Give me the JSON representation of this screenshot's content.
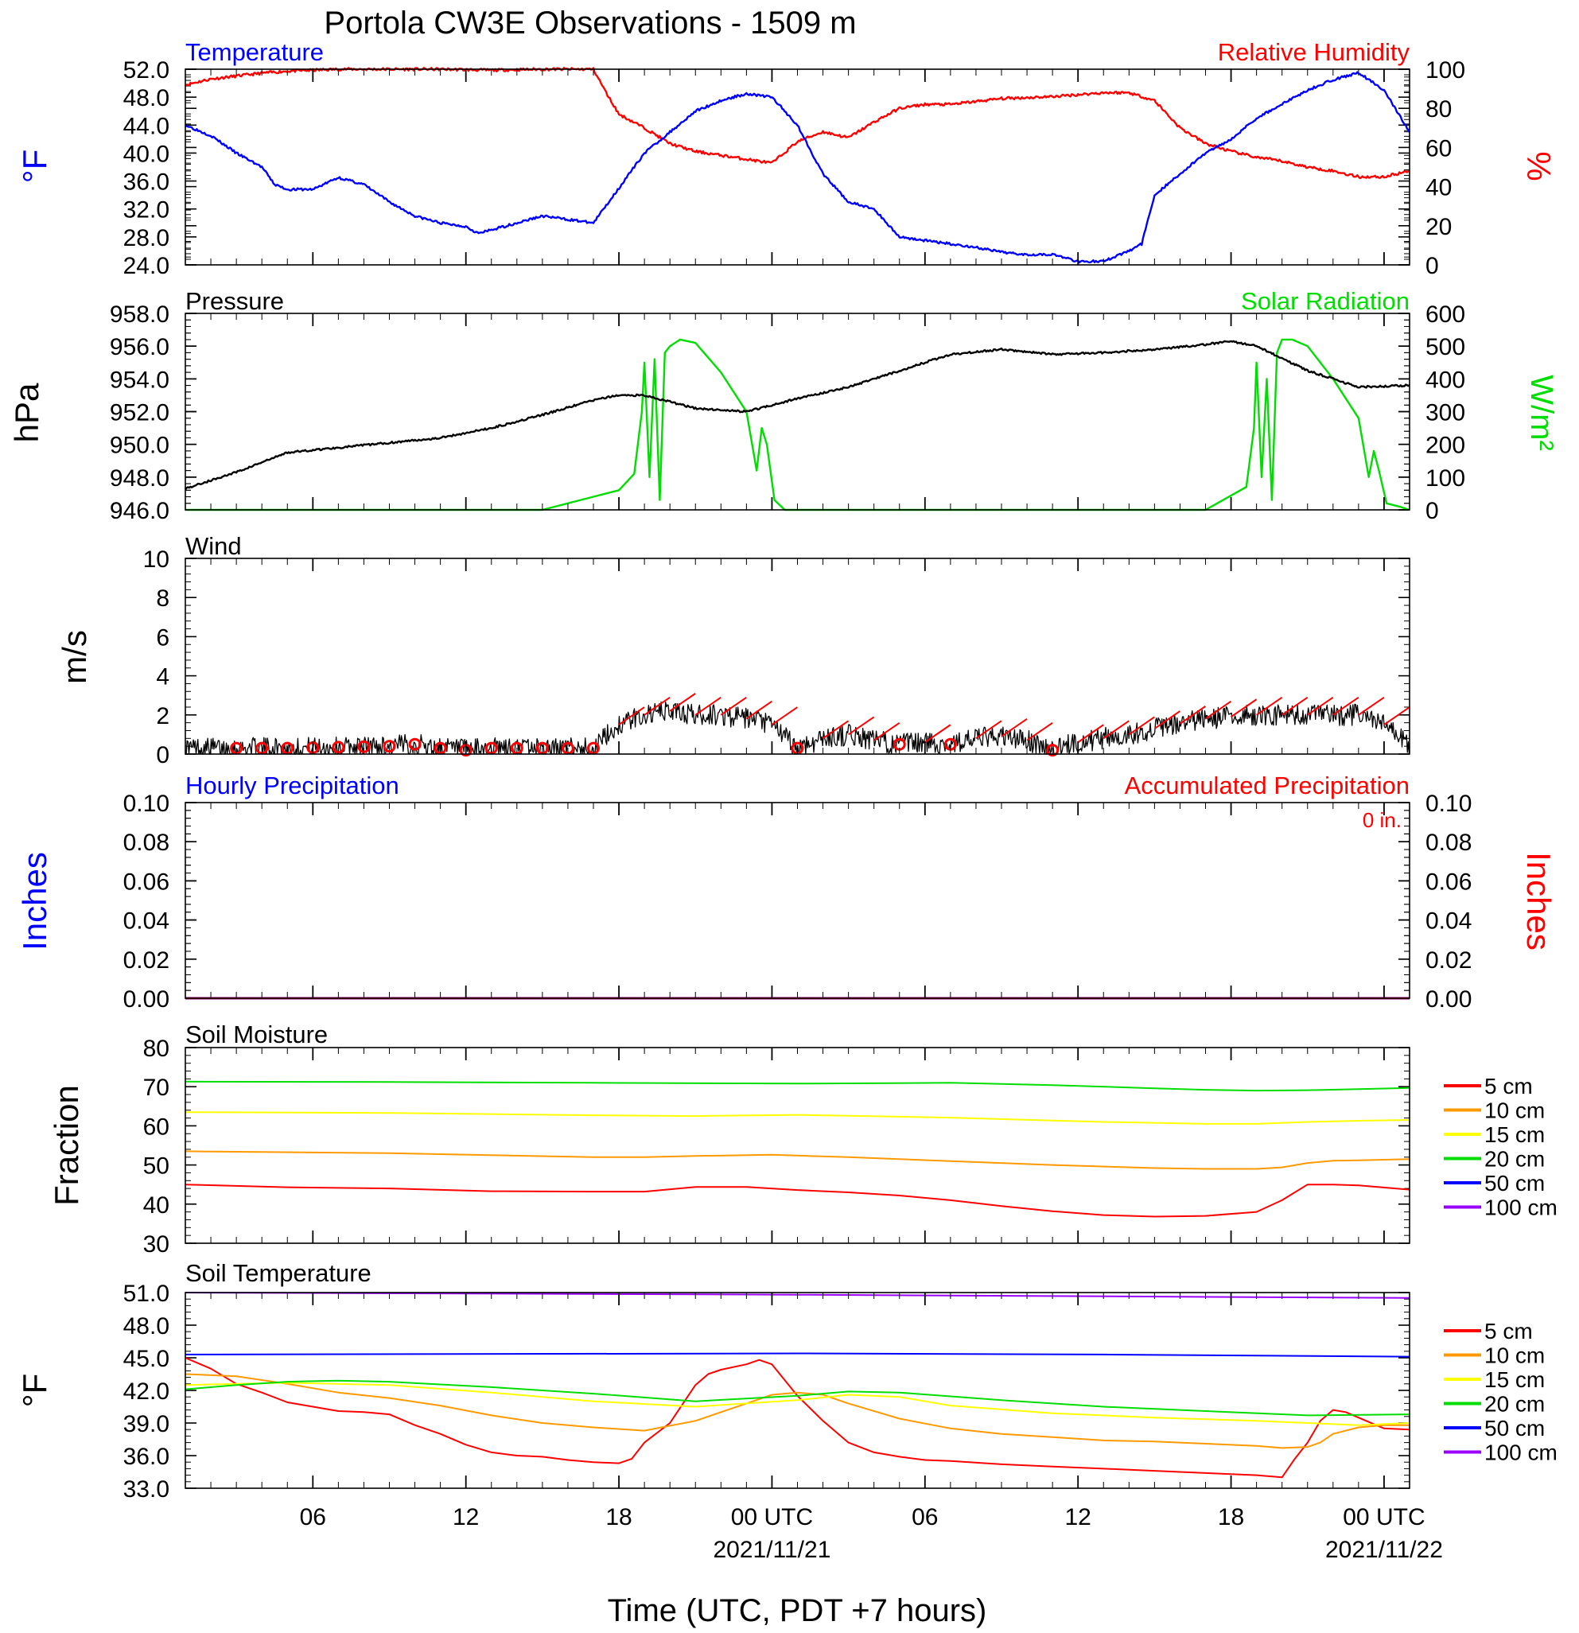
{
  "title": "Portola CW3E Observations - 1509 m",
  "x_axis": {
    "label": "Time (UTC, PDT +7 hours)",
    "range_hours": [
      0,
      48
    ],
    "ticks": [
      {
        "hour": 5,
        "label": "06"
      },
      {
        "hour": 11,
        "label": "12"
      },
      {
        "hour": 17,
        "label": "18"
      },
      {
        "hour": 23,
        "label": "00 UTC",
        "date": "2021/11/21"
      },
      {
        "hour": 29,
        "label": "06"
      },
      {
        "hour": 35,
        "label": "12"
      },
      {
        "hour": 41,
        "label": "18"
      },
      {
        "hour": 47,
        "label": "00 UTC",
        "date": "2021/11/22"
      }
    ]
  },
  "colors": {
    "blue": "#0000ff",
    "red": "#ff0000",
    "green": "#00dd00",
    "black": "#000000",
    "orange": "#ff9900",
    "yellow": "#ffff00",
    "purple": "#9900ff"
  },
  "panels": {
    "temp_rh": {
      "left_title": "Temperature",
      "right_title": "Relative Humidity",
      "left_unit": "°F",
      "right_unit": "%",
      "left_ticks": [
        "52.0",
        "48.0",
        "44.0",
        "40.0",
        "36.0",
        "32.0",
        "28.0",
        "24.0"
      ],
      "right_ticks": [
        "100",
        "80",
        "60",
        "40",
        "20",
        "0"
      ]
    },
    "pressure_solar": {
      "left_title": "Pressure",
      "right_title": "Solar Radiation",
      "left_unit": "hPa",
      "right_unit": "W/m²",
      "left_ticks": [
        "958.0",
        "956.0",
        "954.0",
        "952.0",
        "950.0",
        "948.0",
        "946.0"
      ],
      "right_ticks": [
        "600",
        "500",
        "400",
        "300",
        "200",
        "100",
        "0"
      ]
    },
    "wind": {
      "left_title": "Wind",
      "left_unit": "m/s",
      "left_ticks": [
        "10",
        "8",
        "6",
        "4",
        "2",
        "0"
      ]
    },
    "precip": {
      "left_title": "Hourly Precipitation",
      "right_title": "Accumulated Precipitation",
      "accum_label": "0 in.",
      "left_unit": "Inches",
      "right_unit": "Inches",
      "left_ticks": [
        "0.10",
        "0.08",
        "0.06",
        "0.04",
        "0.02",
        "0.00"
      ],
      "right_ticks": [
        "0.10",
        "0.08",
        "0.06",
        "0.04",
        "0.02",
        "0.00"
      ]
    },
    "soil_moisture": {
      "left_title": "Soil Moisture",
      "left_unit": "Fraction",
      "left_ticks": [
        "80",
        "70",
        "60",
        "50",
        "40",
        "30"
      ],
      "legend": [
        "5 cm",
        "10 cm",
        "15 cm",
        "20 cm",
        "50 cm",
        "100 cm"
      ]
    },
    "soil_temp": {
      "left_title": "Soil Temperature",
      "left_unit": "°F",
      "left_ticks": [
        "51.0",
        "48.0",
        "45.0",
        "42.0",
        "39.0",
        "36.0",
        "33.0"
      ],
      "legend": [
        "5 cm",
        "10 cm",
        "15 cm",
        "20 cm",
        "50 cm",
        "100 cm"
      ]
    }
  },
  "chart_data": [
    {
      "type": "line",
      "title": "Temperature",
      "ylabel": "°F",
      "ylim": [
        24,
        52
      ],
      "series": [
        {
          "name": "Temperature",
          "color": "#0000ff",
          "x": [
            0,
            1,
            2,
            3,
            3.5,
            4,
            5,
            6,
            7,
            8,
            9,
            10,
            11,
            11.5,
            12,
            13,
            14,
            15,
            16,
            17,
            18,
            19,
            20,
            21,
            22,
            23,
            23.5,
            24,
            25,
            26,
            27,
            28,
            29,
            30,
            31,
            32,
            33,
            34,
            35,
            36,
            37,
            37.5,
            38,
            39,
            40,
            41,
            42,
            43,
            44,
            45,
            46,
            47,
            48
          ],
          "y": [
            44,
            42.5,
            40,
            38,
            35.5,
            34.8,
            34.8,
            36.5,
            35.5,
            33,
            31,
            30,
            29.5,
            28.5,
            29,
            30,
            31,
            30.5,
            30,
            35,
            40,
            43,
            46,
            47.5,
            48.5,
            48,
            46,
            44,
            37,
            33,
            32,
            28,
            27.5,
            27,
            26.5,
            25.8,
            25.5,
            25.5,
            24.5,
            24.5,
            26,
            27,
            34,
            37,
            40,
            42,
            45,
            47,
            49,
            50.5,
            51.5,
            49,
            43
          ]
        }
      ]
    },
    {
      "type": "line",
      "title": "Relative Humidity",
      "ylabel": "%",
      "ylim": [
        0,
        100
      ],
      "series": [
        {
          "name": "Relative Humidity",
          "color": "#ff0000",
          "x": [
            0,
            1,
            2,
            3,
            4,
            5,
            6,
            8,
            10,
            12,
            14,
            16,
            16.5,
            17,
            18,
            19,
            20,
            21,
            22,
            23,
            24,
            25,
            26,
            27,
            28,
            29,
            30,
            32,
            34,
            36,
            37,
            38,
            39,
            40,
            41,
            42,
            43,
            44,
            45,
            46,
            47,
            48
          ],
          "y": [
            92,
            95,
            96.5,
            98,
            99,
            99.5,
            100,
            100,
            100,
            99.5,
            100,
            100,
            88,
            77,
            70,
            62,
            58,
            56,
            54,
            52,
            63,
            68,
            65,
            73,
            80,
            82,
            82,
            85,
            86,
            88,
            88,
            84,
            70,
            62,
            58,
            55,
            53,
            50,
            48,
            45,
            45,
            48
          ]
        }
      ]
    },
    {
      "type": "line",
      "title": "Pressure",
      "ylabel": "hPa",
      "ylim": [
        946,
        958
      ],
      "series": [
        {
          "name": "Pressure",
          "color": "#000000",
          "x": [
            0,
            2,
            4,
            6,
            8,
            10,
            12,
            14,
            16,
            17,
            18,
            20,
            22,
            24,
            26,
            28,
            30,
            32,
            34,
            36,
            38,
            40,
            41,
            42,
            44,
            46,
            48
          ],
          "y": [
            947.3,
            948.3,
            949.5,
            949.8,
            950.1,
            950.4,
            951,
            951.8,
            952.7,
            953,
            953,
            952.2,
            952,
            952.8,
            953.5,
            954.5,
            955.5,
            955.8,
            955.5,
            955.6,
            955.8,
            956.1,
            956.3,
            956,
            954.5,
            953.5,
            953.6
          ]
        }
      ]
    },
    {
      "type": "line",
      "title": "Solar Radiation",
      "ylabel": "W/m²",
      "ylim": [
        0,
        600
      ],
      "series": [
        {
          "name": "Solar Radiation",
          "color": "#00dd00",
          "x": [
            0,
            14,
            16,
            17,
            17.6,
            17.9,
            18,
            18.2,
            18.4,
            18.6,
            18.8,
            19,
            19.4,
            20,
            21,
            22,
            22.4,
            22.6,
            22.8,
            23.1,
            23.5,
            24,
            40,
            41.6,
            41.9,
            42,
            42.2,
            42.4,
            42.6,
            42.8,
            43,
            43.4,
            44,
            45,
            46,
            46.4,
            46.6,
            46.8,
            47.1,
            47.6,
            48
          ],
          "y": [
            0,
            0,
            40,
            60,
            110,
            300,
            450,
            100,
            460,
            30,
            480,
            500,
            520,
            510,
            420,
            300,
            120,
            250,
            200,
            30,
            0,
            0,
            0,
            70,
            250,
            450,
            100,
            400,
            30,
            480,
            520,
            520,
            500,
            400,
            280,
            100,
            180,
            120,
            20,
            10,
            0
          ]
        }
      ]
    },
    {
      "type": "line",
      "title": "Wind",
      "ylabel": "m/s",
      "ylim": [
        0,
        10
      ],
      "series": [
        {
          "name": "Wind speed",
          "color": "#000000",
          "x": [
            0,
            4,
            8,
            9,
            10,
            11,
            12,
            14,
            16,
            16.5,
            17,
            18,
            19,
            20,
            21,
            22,
            23,
            24,
            25,
            26,
            27,
            28,
            29,
            30,
            31,
            32,
            33,
            34,
            35,
            36,
            37,
            38,
            40,
            42,
            44,
            46,
            47,
            48
          ],
          "y": [
            0.3,
            0.3,
            0.4,
            0.5,
            0.3,
            0.2,
            0.3,
            0.3,
            0.3,
            0.9,
            1.5,
            2,
            2.2,
            2,
            2,
            1.8,
            1.5,
            0.3,
            0.8,
            1,
            0.7,
            0.5,
            0.6,
            0.5,
            0.8,
            0.9,
            0.7,
            0.2,
            0.6,
            0.8,
            1,
            1.3,
            1.8,
            2,
            2,
            2,
            1.5,
            0.5
          ]
        }
      ]
    },
    {
      "type": "line",
      "title": "Hourly Precipitation",
      "ylabel": "Inches",
      "ylim": [
        0,
        0.1
      ],
      "series": [
        {
          "name": "Hourly Precipitation",
          "color": "#0000ff",
          "x": [
            0,
            48
          ],
          "y": [
            0,
            0
          ]
        },
        {
          "name": "Accumulated Precipitation",
          "color": "#ff0000",
          "x": [
            0,
            48
          ],
          "y": [
            0,
            0
          ]
        }
      ]
    },
    {
      "type": "line",
      "title": "Soil Moisture",
      "ylabel": "Fraction",
      "ylim": [
        30,
        80
      ],
      "series": [
        {
          "name": "5 cm",
          "color": "#ff0000",
          "x": [
            0,
            4,
            8,
            12,
            16,
            18,
            20,
            22,
            24,
            26,
            28,
            30,
            32,
            34,
            36,
            38,
            40,
            42,
            43,
            44,
            45,
            46,
            48
          ],
          "y": [
            45,
            44.3,
            44,
            43.3,
            43.2,
            43.2,
            44.4,
            44.4,
            43.6,
            43,
            42.2,
            41,
            39.5,
            38.2,
            37.2,
            36.8,
            37,
            38,
            41,
            45,
            45,
            44.8,
            43.7
          ]
        },
        {
          "name": "10 cm",
          "color": "#ff9900",
          "x": [
            0,
            8,
            16,
            18,
            20,
            23,
            26,
            30,
            34,
            38,
            40,
            42,
            43,
            44,
            45,
            46,
            48
          ],
          "y": [
            53.5,
            53,
            52,
            52,
            52.3,
            52.6,
            52,
            51,
            50,
            49.2,
            49,
            49,
            49.4,
            50.5,
            51.1,
            51.2,
            51.5
          ]
        },
        {
          "name": "15 cm",
          "color": "#ffff00",
          "x": [
            0,
            8,
            16,
            20,
            24,
            30,
            36,
            40,
            42,
            44,
            46,
            48
          ],
          "y": [
            63.5,
            63.3,
            62.7,
            62.5,
            62.8,
            62.1,
            61,
            60.5,
            60.5,
            61,
            61.3,
            61.5
          ]
        },
        {
          "name": "20 cm",
          "color": "#00dd00",
          "x": [
            0,
            8,
            16,
            24,
            30,
            34,
            38,
            40,
            42,
            44,
            46,
            48
          ],
          "y": [
            71.3,
            71.2,
            71,
            70.8,
            71,
            70.4,
            69.6,
            69.2,
            69,
            69.1,
            69.4,
            69.7
          ]
        }
      ]
    },
    {
      "type": "line",
      "title": "Soil Temperature",
      "ylabel": "°F",
      "ylim": [
        33,
        51
      ],
      "series": [
        {
          "name": "5 cm",
          "color": "#ff0000",
          "x": [
            0,
            1,
            2,
            3,
            4,
            5,
            6,
            7,
            8,
            9,
            10,
            11,
            12,
            13,
            14,
            15,
            16,
            17,
            17.5,
            18,
            19,
            20,
            20.5,
            21,
            22,
            22.5,
            23,
            24,
            25,
            26,
            27,
            28,
            29,
            30,
            32,
            34,
            36,
            38,
            40,
            42,
            43,
            43.5,
            44,
            44.5,
            45,
            45.5,
            46,
            47,
            48
          ],
          "y": [
            45,
            44,
            42.6,
            41.8,
            40.9,
            40.5,
            40.1,
            40,
            39.8,
            38.8,
            38,
            37,
            36.3,
            36,
            35.9,
            35.6,
            35.4,
            35.3,
            35.7,
            37.2,
            39,
            42.5,
            43.5,
            43.9,
            44.4,
            44.8,
            44.4,
            41.5,
            39.2,
            37.2,
            36.3,
            35.9,
            35.6,
            35.5,
            35.2,
            35,
            34.8,
            34.6,
            34.4,
            34.2,
            34,
            35.7,
            37.2,
            39.2,
            40.2,
            40,
            39.5,
            38.5,
            38.4
          ]
        },
        {
          "name": "10 cm",
          "color": "#ff9900",
          "x": [
            0,
            2,
            4,
            6,
            8,
            10,
            12,
            14,
            16,
            18,
            20,
            22,
            23,
            24,
            25,
            26,
            28,
            30,
            32,
            34,
            36,
            38,
            40,
            42,
            43,
            44,
            44.5,
            45,
            46,
            47,
            48
          ],
          "y": [
            43.5,
            43.3,
            42.6,
            41.8,
            41.3,
            40.6,
            39.7,
            39,
            38.6,
            38.3,
            39.2,
            40.8,
            41.6,
            41.8,
            41.6,
            40.8,
            39.4,
            38.5,
            38,
            37.7,
            37.4,
            37.3,
            37.1,
            36.9,
            36.7,
            36.8,
            37.2,
            38,
            38.6,
            38.8,
            38.8
          ]
        },
        {
          "name": "15 cm",
          "color": "#ffff00",
          "x": [
            0,
            4,
            8,
            12,
            16,
            20,
            24,
            26,
            28,
            30,
            34,
            38,
            42,
            46,
            48
          ],
          "y": [
            42.5,
            42.7,
            42.5,
            41.8,
            41,
            40.5,
            41.1,
            41.6,
            41.4,
            40.6,
            39.9,
            39.5,
            39.2,
            38.8,
            39
          ]
        },
        {
          "name": "20 cm",
          "color": "#00dd00",
          "x": [
            0,
            2,
            4,
            6,
            8,
            12,
            16,
            20,
            24,
            26,
            28,
            32,
            36,
            40,
            44,
            48
          ],
          "y": [
            42.1,
            42.5,
            42.8,
            42.9,
            42.8,
            42.3,
            41.7,
            41,
            41.5,
            41.9,
            41.8,
            41.1,
            40.5,
            40.1,
            39.7,
            39.8
          ]
        },
        {
          "name": "50 cm",
          "color": "#0000ff",
          "x": [
            0,
            24,
            36,
            48
          ],
          "y": [
            45.3,
            45.4,
            45.3,
            45.1
          ]
        },
        {
          "name": "100 cm",
          "color": "#9900ff",
          "x": [
            0,
            24,
            48
          ],
          "y": [
            51,
            50.8,
            50.5
          ]
        }
      ]
    }
  ]
}
